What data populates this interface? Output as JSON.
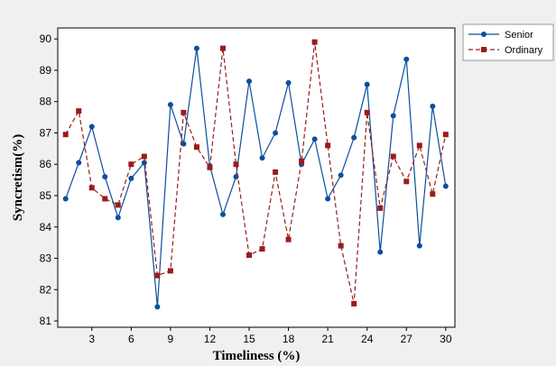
{
  "chart_data": {
    "type": "line",
    "xlabel": "Timeliness (%)",
    "ylabel": "Syncretism(%)",
    "x_ticks": [
      3,
      6,
      9,
      12,
      15,
      18,
      21,
      24,
      27,
      30
    ],
    "y_ticks": [
      81,
      82,
      83,
      84,
      85,
      86,
      87,
      88,
      89,
      90
    ],
    "xlim": [
      0.4,
      30.7
    ],
    "ylim": [
      80.8,
      90.35
    ],
    "grid": false,
    "legend_position": "top-right outside",
    "x": [
      1,
      2,
      3,
      4,
      5,
      6,
      7,
      8,
      9,
      10,
      11,
      12,
      13,
      14,
      15,
      16,
      17,
      18,
      19,
      20,
      21,
      22,
      23,
      24,
      25,
      26,
      27,
      28,
      29,
      30
    ],
    "series": [
      {
        "name": "Senior",
        "color": "#0b4f9e",
        "line_style": "solid",
        "marker": "circle",
        "values": [
          84.9,
          86.05,
          87.2,
          85.6,
          84.3,
          85.55,
          86.05,
          81.45,
          87.9,
          86.65,
          89.7,
          85.95,
          84.4,
          85.6,
          88.65,
          86.2,
          87.0,
          88.6,
          86.0,
          86.8,
          84.9,
          85.65,
          86.85,
          88.55,
          83.2,
          87.55,
          89.35,
          83.4,
          87.85,
          85.3
        ]
      },
      {
        "name": "Ordinary",
        "color": "#9b1b1b",
        "line_style": "dashed",
        "marker": "square",
        "values": [
          86.95,
          87.7,
          85.25,
          84.9,
          84.7,
          86.0,
          86.25,
          82.45,
          82.6,
          87.65,
          86.55,
          85.9,
          89.7,
          86.0,
          83.1,
          83.3,
          85.75,
          83.6,
          86.1,
          89.9,
          86.6,
          83.4,
          81.55,
          87.65,
          84.6,
          86.25,
          85.45,
          86.6,
          85.05,
          86.95
        ]
      }
    ]
  }
}
